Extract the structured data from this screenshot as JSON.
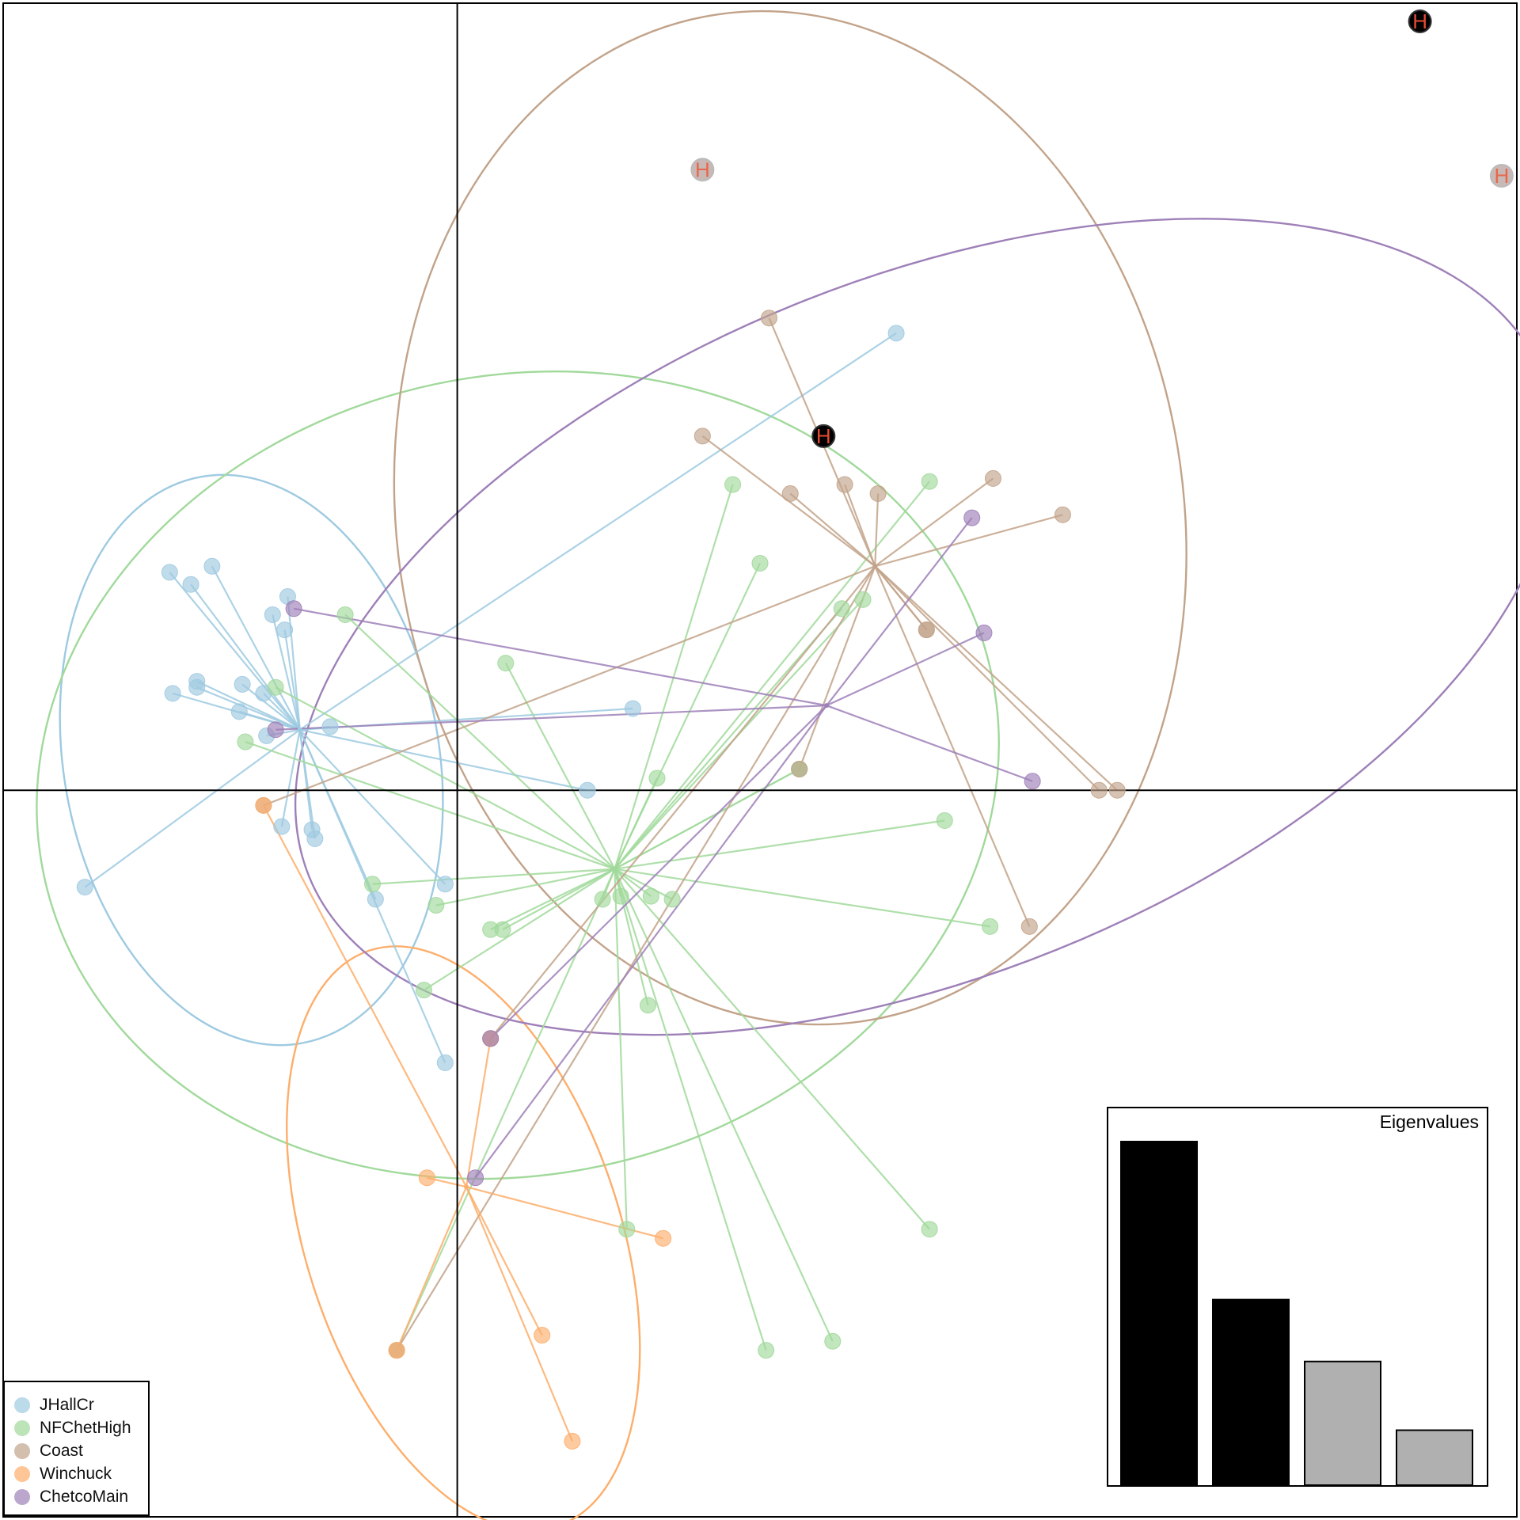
{
  "chart_data": {
    "type": "scatter",
    "title": "",
    "xlabel": "",
    "ylabel": "",
    "xlim": [
      -1.5,
      3.5
    ],
    "ylim": [
      -2.4,
      2.6
    ],
    "axes_cross_at": [
      0,
      0
    ],
    "groups": [
      {
        "name": "JHallCr",
        "color": "#9ecae1",
        "centroid": [
          -0.52,
          0.2
        ],
        "ellipse": {
          "center": [
            -0.68,
            0.1
          ],
          "rx": 0.62,
          "ry": 0.95,
          "angle": -10
        },
        "points": [
          [
            -0.95,
            0.72
          ],
          [
            -0.88,
            0.68
          ],
          [
            -0.81,
            0.74
          ],
          [
            -0.61,
            0.58
          ],
          [
            -0.57,
            0.53
          ],
          [
            -0.94,
            0.32
          ],
          [
            -0.86,
            0.36
          ],
          [
            -0.86,
            0.34
          ],
          [
            -0.71,
            0.35
          ],
          [
            -0.72,
            0.26
          ],
          [
            -0.64,
            0.32
          ],
          [
            -0.42,
            0.21
          ],
          [
            -0.58,
            -0.12
          ],
          [
            -0.48,
            -0.13
          ],
          [
            -0.47,
            -0.16
          ],
          [
            -1.23,
            -0.32
          ],
          [
            -0.27,
            -0.36
          ],
          [
            -0.04,
            -0.31
          ],
          [
            1.45,
            1.51
          ],
          [
            0.58,
            0.27
          ],
          [
            0.43,
            0.0
          ],
          [
            -0.04,
            -0.9
          ],
          [
            -0.56,
            0.64
          ],
          [
            -0.63,
            0.18
          ]
        ]
      },
      {
        "name": "NFChetHigh",
        "color": "#a1d99b",
        "centroid": [
          0.52,
          -0.26
        ],
        "ellipse": {
          "center": [
            0.2,
            0.05
          ],
          "rx": 1.6,
          "ry": 1.32,
          "angle": -12
        },
        "points": [
          [
            -0.37,
            0.58
          ],
          [
            0.16,
            0.42
          ],
          [
            -0.6,
            0.34
          ],
          [
            1.0,
            0.75
          ],
          [
            1.56,
            1.02
          ],
          [
            1.34,
            0.63
          ],
          [
            1.13,
            0.07
          ],
          [
            0.66,
            0.04
          ],
          [
            1.27,
            0.6
          ],
          [
            1.61,
            -0.1
          ],
          [
            1.76,
            -0.45
          ],
          [
            0.71,
            -0.36
          ],
          [
            -0.07,
            -0.38
          ],
          [
            0.11,
            -0.46
          ],
          [
            -0.11,
            -0.66
          ],
          [
            0.56,
            -1.45
          ],
          [
            1.56,
            -1.45
          ],
          [
            1.24,
            -1.82
          ],
          [
            0.54,
            -0.35
          ],
          [
            0.64,
            -0.35
          ],
          [
            1.02,
            -1.85
          ],
          [
            0.63,
            -0.71
          ],
          [
            -0.2,
            -1.85
          ],
          [
            -0.7,
            0.16
          ],
          [
            -0.28,
            -0.31
          ],
          [
            0.91,
            1.01
          ],
          [
            0.48,
            -0.36
          ],
          [
            0.15,
            -0.46
          ],
          [
            1.13,
            0.07
          ]
        ]
      },
      {
        "name": "Coast",
        "color": "#c2a38a",
        "centroid": [
          1.38,
          0.74
        ],
        "ellipse": {
          "center": [
            1.1,
            0.9
          ],
          "rx": 1.3,
          "ry": 1.68,
          "angle": -8
        },
        "points": [
          [
            1.03,
            1.56
          ],
          [
            1.28,
            1.01
          ],
          [
            1.1,
            0.98
          ],
          [
            1.39,
            0.98
          ],
          [
            1.77,
            1.03
          ],
          [
            1.55,
            0.53
          ],
          [
            0.81,
            1.17
          ],
          [
            2.12,
            -0.0
          ],
          [
            2.18,
            -0.0
          ],
          [
            1.89,
            -0.45
          ],
          [
            -0.64,
            -0.05
          ],
          [
            0.11,
            -0.82
          ],
          [
            -0.2,
            -1.85
          ],
          [
            1.13,
            0.07
          ],
          [
            1.55,
            0.53
          ],
          [
            2.0,
            0.91
          ]
        ]
      },
      {
        "name": "Winchuck",
        "color": "#fdae6b",
        "centroid": [
          0.03,
          -1.31
        ],
        "ellipse": {
          "center": [
            0.02,
            -1.48
          ],
          "rx": 0.52,
          "ry": 1.0,
          "angle": -18
        },
        "points": [
          [
            -0.1,
            -1.28
          ],
          [
            0.68,
            -1.48
          ],
          [
            0.28,
            -1.8
          ],
          [
            0.38,
            -2.15
          ],
          [
            -0.64,
            -0.05
          ],
          [
            0.11,
            -0.82
          ],
          [
            -0.2,
            -1.85
          ]
        ]
      },
      {
        "name": "ChetcoMain",
        "color": "#9e80b8",
        "centroid": [
          1.22,
          0.28
        ],
        "ellipse": {
          "center": [
            1.55,
            0.54
          ],
          "rx": 2.2,
          "ry": 1.15,
          "angle": -22
        },
        "points": [
          [
            1.7,
            0.9
          ],
          [
            1.74,
            0.52
          ],
          [
            1.9,
            0.03
          ],
          [
            0.06,
            -1.28
          ],
          [
            -0.54,
            0.6
          ],
          [
            0.11,
            -0.82
          ],
          [
            -0.6,
            0.2
          ]
        ]
      }
    ],
    "hybrid_markers": [
      {
        "label": "H",
        "x": 0.81,
        "y": 2.05,
        "style": "light"
      },
      {
        "label": "H",
        "x": 1.21,
        "y": 1.17,
        "style": "dark"
      },
      {
        "label": "H",
        "x": 3.18,
        "y": 2.54,
        "style": "dark"
      },
      {
        "label": "H",
        "x": 3.45,
        "y": 2.03,
        "style": "light"
      }
    ],
    "legend": {
      "placement": "bottom-left",
      "entries": [
        "JHallCr",
        "NFChetHigh",
        "Coast",
        "Winchuck",
        "ChetcoMain"
      ]
    },
    "eigenvalues": {
      "title": "Eigenvalues",
      "placement": "bottom-right",
      "values": [
        100,
        54,
        36,
        16
      ],
      "retained": [
        true,
        true,
        false,
        false
      ],
      "colors": {
        "retained": "#000000",
        "other": "#b0b0b0"
      }
    }
  }
}
